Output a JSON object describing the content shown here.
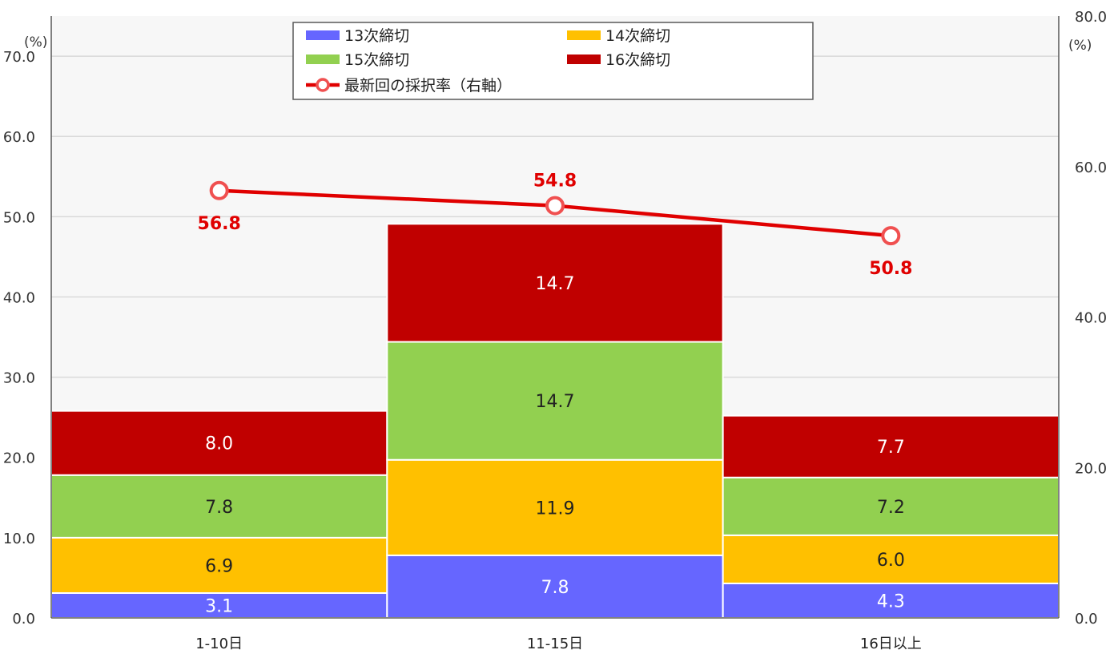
{
  "chart_data": {
    "type": "bar",
    "stacked": true,
    "categories": [
      "1-10日",
      "11-15日",
      "16日以上"
    ],
    "series": [
      {
        "name": "13次締切",
        "color": "#6666FF",
        "values": [
          3.1,
          7.8,
          4.3
        ],
        "label_color": "#FFFFFF"
      },
      {
        "name": "14次締切",
        "color": "#FFC000",
        "values": [
          6.9,
          11.9,
          6.0
        ],
        "label_color": "#222222"
      },
      {
        "name": "15次締切",
        "color": "#92D050",
        "values": [
          7.8,
          14.7,
          7.2
        ],
        "label_color": "#222222"
      },
      {
        "name": "16次締切",
        "color": "#C00000",
        "values": [
          8.0,
          14.7,
          7.7
        ],
        "label_color": "#FFFFFF"
      }
    ],
    "line_series": {
      "name": "最新回の採択率（右軸）",
      "color": "#E00000",
      "axis": "right",
      "values": [
        56.8,
        54.8,
        50.8
      ]
    },
    "y_left": {
      "unit": "(%)",
      "min": 0,
      "max": 75,
      "ticks": [
        0,
        10,
        20,
        30,
        40,
        50,
        60,
        70
      ],
      "tick_labels": [
        "0.0",
        "10.0",
        "20.0",
        "30.0",
        "40.0",
        "50.0",
        "60.0",
        "70.0"
      ]
    },
    "y_right": {
      "unit": "(%)",
      "min": 0,
      "max": 80,
      "ticks": [
        0,
        20,
        40,
        60,
        80
      ],
      "tick_labels": [
        "0.0",
        "20.0",
        "40.0",
        "60.0",
        "80.0"
      ]
    },
    "grid": true,
    "legend_position": "top-center"
  }
}
